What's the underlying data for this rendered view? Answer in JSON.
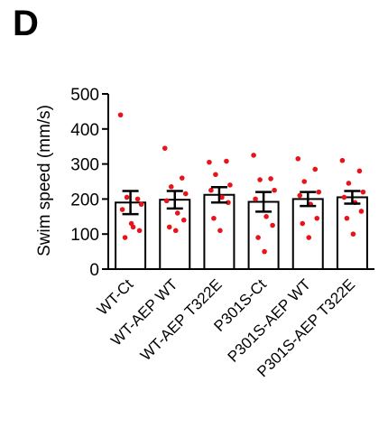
{
  "panel_label": "D",
  "chart_data": {
    "type": "bar",
    "title": "",
    "xlabel": "",
    "ylabel": "Swim speed (mm/s)",
    "ylim": [
      0,
      500
    ],
    "yticks": [
      0,
      100,
      200,
      300,
      400,
      500
    ],
    "grid": false,
    "colors": {
      "bar_fill": "#ffffff",
      "bar_stroke": "#000000",
      "point": "#e8141a",
      "error": "#000000"
    },
    "categories": [
      "WT-Ct",
      "WT-AEP WT",
      "WT-AEP T322E",
      "P301S-Ct",
      "P301S-AEP WT",
      "P301S-AEP T322E"
    ],
    "values": [
      190,
      198,
      212,
      192,
      200,
      205
    ],
    "error": [
      33,
      25,
      22,
      28,
      20,
      18
    ],
    "points": [
      [
        440,
        200,
        205,
        185,
        170,
        120,
        110,
        90,
        130
      ],
      [
        345,
        260,
        235,
        215,
        195,
        160,
        140,
        120,
        110
      ],
      [
        305,
        308,
        270,
        240,
        225,
        205,
        190,
        145,
        110
      ],
      [
        325,
        258,
        255,
        225,
        200,
        150,
        125,
        90,
        50
      ],
      [
        315,
        285,
        250,
        220,
        210,
        185,
        145,
        130,
        90
      ],
      [
        310,
        280,
        245,
        220,
        205,
        190,
        165,
        145,
        100
      ]
    ]
  }
}
